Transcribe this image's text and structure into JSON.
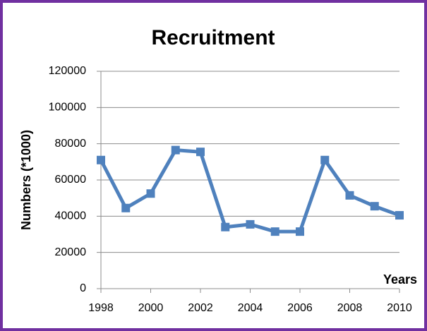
{
  "chart_data": {
    "type": "line",
    "title": "Recruitment",
    "y_label": "Numbers (*1000)",
    "x_label": "Years",
    "x": [
      1998,
      1999,
      2000,
      2001,
      2002,
      2003,
      2004,
      2005,
      2006,
      2007,
      2008,
      2009,
      2010
    ],
    "series": [
      {
        "name": "Recruitment",
        "color": "#4f81bd",
        "values": [
          71000,
          44500,
          52500,
          76500,
          75500,
          34000,
          35500,
          31500,
          31500,
          71000,
          51500,
          45500,
          40500
        ]
      }
    ],
    "xlim": [
      1998,
      2010
    ],
    "xticks": [
      1998,
      2000,
      2002,
      2004,
      2006,
      2008,
      2010
    ],
    "ylim": [
      0,
      120000
    ],
    "yticks": [
      0,
      20000,
      40000,
      60000,
      80000,
      100000,
      120000
    ],
    "grid": true
  }
}
